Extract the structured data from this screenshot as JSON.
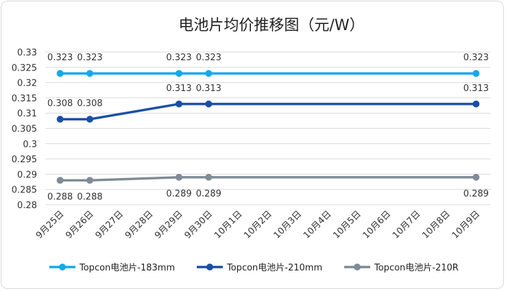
{
  "chart_data": {
    "type": "line",
    "title": "电池片均价推移图（元/W）",
    "categories": [
      "9月25日",
      "9月26日",
      "9月27日",
      "9月28日",
      "9月29日",
      "9月30日",
      "10月1日",
      "10月2日",
      "10月3日",
      "10月4日",
      "10月5日",
      "10月6日",
      "10月7日",
      "10月8日",
      "10月9日"
    ],
    "series": [
      {
        "name": "Topcon电池片-183mm",
        "color": "#14a9ec",
        "values": [
          0.323,
          0.323,
          null,
          null,
          0.323,
          0.323,
          null,
          null,
          null,
          null,
          null,
          null,
          null,
          null,
          0.323
        ],
        "labels": [
          "0.323",
          "0.323",
          null,
          null,
          "0.323",
          "0.323",
          null,
          null,
          null,
          null,
          null,
          null,
          null,
          null,
          "0.323"
        ],
        "label_pos": "above"
      },
      {
        "name": "Topcon电池片-210mm",
        "color": "#1b4fa5",
        "values": [
          0.308,
          0.308,
          null,
          null,
          0.313,
          0.313,
          null,
          null,
          null,
          null,
          null,
          null,
          null,
          null,
          0.313
        ],
        "labels": [
          "0.308",
          "0.308",
          null,
          null,
          "0.313",
          "0.313",
          null,
          null,
          null,
          null,
          null,
          null,
          null,
          null,
          "0.313"
        ],
        "label_pos": "above"
      },
      {
        "name": "Topcon电池片-210R",
        "color": "#7f8b96",
        "values": [
          0.288,
          0.288,
          null,
          null,
          0.289,
          0.289,
          null,
          null,
          null,
          null,
          null,
          null,
          null,
          null,
          0.289
        ],
        "labels": [
          "0.288",
          "0.288",
          null,
          null,
          "0.289",
          "0.289",
          null,
          null,
          null,
          null,
          null,
          null,
          null,
          null,
          "0.289"
        ],
        "label_pos": "below"
      }
    ],
    "ylim": [
      0.28,
      0.33
    ],
    "yticks": [
      "0.28",
      "0.285",
      "0.29",
      "0.295",
      "0.3",
      "0.305",
      "0.31",
      "0.315",
      "0.32",
      "0.325",
      "0.33"
    ],
    "grid": true,
    "legend": "bottom"
  }
}
